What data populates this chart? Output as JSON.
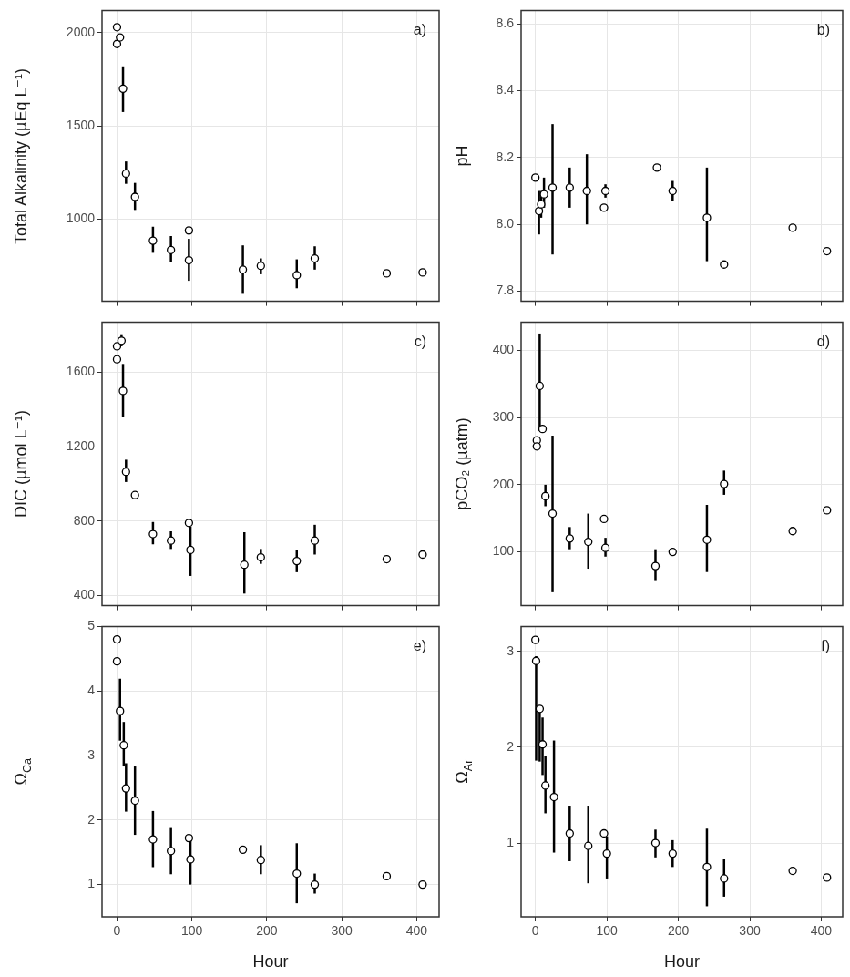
{
  "chart_data": [
    {
      "type": "scatter",
      "ylabel": "Total Alkalinity (µEq L⁻¹)",
      "annotations": [
        "a)"
      ],
      "color": "#000000",
      "marker": "circle",
      "grid": true,
      "tick_labels": "y",
      "xlim": [
        -20,
        430
      ],
      "xticks": [
        0,
        100,
        200,
        300,
        400
      ],
      "ylim": [
        560,
        2120
      ],
      "yticks": [
        1000,
        1500,
        2000
      ],
      "x": [
        0,
        0,
        4,
        8,
        12,
        24,
        48,
        72,
        96,
        96,
        168,
        192,
        240,
        264,
        360,
        408
      ],
      "values": [
        2030,
        1940,
        1975,
        1700,
        1245,
        1120,
        885,
        835,
        940,
        780,
        730,
        750,
        700,
        790,
        710,
        715
      ],
      "errors": [
        null,
        null,
        null,
        [
          1575,
          1820
        ],
        [
          1190,
          1310
        ],
        [
          1050,
          1195
        ],
        [
          820,
          960
        ],
        [
          770,
          910
        ],
        null,
        [
          670,
          895
        ],
        [
          600,
          860
        ],
        [
          705,
          790
        ],
        [
          630,
          785
        ],
        [
          730,
          855
        ],
        null,
        null
      ]
    },
    {
      "type": "scatter",
      "ylabel": "pH",
      "annotations": [
        "b)"
      ],
      "color": "#000000",
      "marker": "circle",
      "grid": true,
      "tick_labels": "y",
      "xlim": [
        -20,
        430
      ],
      "xticks": [
        0,
        100,
        200,
        300,
        400
      ],
      "ylim": [
        7.77,
        8.64
      ],
      "yticks": [
        7.8,
        {
          "value": 8,
          "label": "8.0"
        },
        8.2,
        8.4,
        8.6
      ],
      "x": [
        0,
        5,
        8,
        12,
        24,
        48,
        72,
        96,
        98,
        170,
        192,
        240,
        264,
        360,
        408
      ],
      "values": [
        8.14,
        8.04,
        8.06,
        8.09,
        8.11,
        8.11,
        8.1,
        8.05,
        8.1,
        8.17,
        8.1,
        8.02,
        7.88,
        7.99,
        7.92
      ],
      "errors": [
        null,
        [
          7.97,
          8.1
        ],
        [
          8.02,
          8.1
        ],
        [
          8.05,
          8.14
        ],
        [
          7.91,
          8.3
        ],
        [
          8.05,
          8.17
        ],
        [
          8,
          8.21
        ],
        null,
        [
          8.08,
          8.12
        ],
        null,
        [
          8.07,
          8.13
        ],
        [
          7.89,
          8.17
        ],
        null,
        null,
        null
      ]
    },
    {
      "type": "scatter",
      "ylabel": "DIC (µmol L⁻¹)",
      "annotations": [
        "c)"
      ],
      "color": "#000000",
      "marker": "circle",
      "grid": true,
      "tick_labels": "y",
      "xlim": [
        -20,
        430
      ],
      "xticks": [
        0,
        100,
        200,
        300,
        400
      ],
      "ylim": [
        345,
        1870
      ],
      "yticks": [
        400,
        800,
        1200,
        1600
      ],
      "x": [
        0,
        0,
        6,
        8,
        12,
        24,
        48,
        72,
        96,
        98,
        170,
        192,
        240,
        264,
        360,
        408
      ],
      "values": [
        1740,
        1670,
        1770,
        1500,
        1065,
        940,
        730,
        695,
        790,
        645,
        565,
        605,
        585,
        695,
        595,
        620
      ],
      "errors": [
        null,
        null,
        [
          1740,
          1800
        ],
        [
          1360,
          1645
        ],
        [
          1010,
          1130
        ],
        null,
        [
          675,
          795
        ],
        [
          650,
          745
        ],
        null,
        [
          505,
          770
        ],
        [
          410,
          740
        ],
        [
          570,
          650
        ],
        [
          525,
          645
        ],
        [
          620,
          780
        ],
        null,
        null
      ]
    },
    {
      "type": "scatter",
      "ylabel": "pCO₂ (µatm)",
      "annotations": [
        "d)"
      ],
      "color": "#000000",
      "marker": "circle",
      "grid": true,
      "tick_labels": "y",
      "xlim": [
        -20,
        430
      ],
      "xticks": [
        0,
        100,
        200,
        300,
        400
      ],
      "ylim": [
        20,
        442
      ],
      "yticks": [
        100,
        200,
        300,
        400
      ],
      "x": [
        2,
        2,
        6,
        10,
        14,
        24,
        48,
        74,
        96,
        98,
        168,
        192,
        240,
        264,
        360,
        408
      ],
      "values": [
        266,
        257,
        347,
        283,
        183,
        157,
        120,
        115,
        149,
        106,
        79,
        100,
        118,
        201,
        131,
        162
      ],
      "errors": [
        null,
        null,
        [
          280,
          425
        ],
        null,
        [
          168,
          200
        ],
        [
          40,
          273
        ],
        [
          104,
          137
        ],
        [
          75,
          157
        ],
        null,
        [
          93,
          121
        ],
        [
          58,
          104
        ],
        null,
        [
          70,
          170
        ],
        [
          185,
          221
        ],
        null,
        null
      ]
    },
    {
      "type": "scatter",
      "ylabel": "Ω$_{Ca}$",
      "xlabel": "Hour",
      "annotations": [
        "e)"
      ],
      "color": "#000000",
      "marker": "circle",
      "grid": true,
      "xlim": [
        -20,
        430
      ],
      "xticks": [
        0,
        100,
        200,
        300,
        400
      ],
      "ylim": [
        0.5,
        5
      ],
      "yticks": [
        1,
        2,
        3,
        4,
        5
      ],
      "x": [
        0,
        0,
        4,
        9,
        12,
        24,
        48,
        72,
        96,
        98,
        168,
        192,
        240,
        264,
        360,
        408
      ],
      "values": [
        4.8,
        4.46,
        3.69,
        3.16,
        2.49,
        2.3,
        1.7,
        1.52,
        1.72,
        1.39,
        1.54,
        1.38,
        1.17,
        1,
        1.13,
        1
      ],
      "errors": [
        null,
        null,
        [
          3.23,
          4.19
        ],
        [
          2.83,
          3.52
        ],
        [
          2.13,
          2.88
        ],
        [
          1.77,
          2.83
        ],
        [
          1.27,
          2.14
        ],
        [
          1.16,
          1.89
        ],
        null,
        [
          1,
          1.77
        ],
        null,
        [
          1.16,
          1.61
        ],
        [
          0.71,
          1.64
        ],
        [
          0.86,
          1.17
        ],
        null,
        null
      ]
    },
    {
      "type": "scatter",
      "ylabel": "Ω$_{Ar}$",
      "xlabel": "Hour",
      "annotations": [
        "f)"
      ],
      "color": "#000000",
      "marker": "circle",
      "grid": true,
      "xlim": [
        -20,
        430
      ],
      "xticks": [
        0,
        100,
        200,
        300,
        400
      ],
      "ylim": [
        0.23,
        3.26
      ],
      "yticks": [
        1,
        2,
        3
      ],
      "x": [
        0,
        1,
        6,
        10,
        14,
        26,
        48,
        74,
        96,
        100,
        168,
        192,
        240,
        264,
        360,
        408
      ],
      "values": [
        3.12,
        2.9,
        2.4,
        2.03,
        1.6,
        1.48,
        1.1,
        0.97,
        1.1,
        0.89,
        1,
        0.89,
        0.75,
        0.63,
        0.71,
        0.64
      ],
      "errors": [
        null,
        [
          1.86,
          2.95
        ],
        [
          1.85,
          2.4
        ],
        [
          1.71,
          2.31
        ],
        [
          1.31,
          1.91
        ],
        [
          0.9,
          2.07
        ],
        [
          0.81,
          1.39
        ],
        [
          0.58,
          1.39
        ],
        null,
        [
          0.63,
          1.07
        ],
        [
          0.85,
          1.14
        ],
        [
          0.75,
          1.03
        ],
        [
          0.34,
          1.15
        ],
        [
          0.44,
          0.83
        ],
        null,
        null
      ]
    }
  ]
}
